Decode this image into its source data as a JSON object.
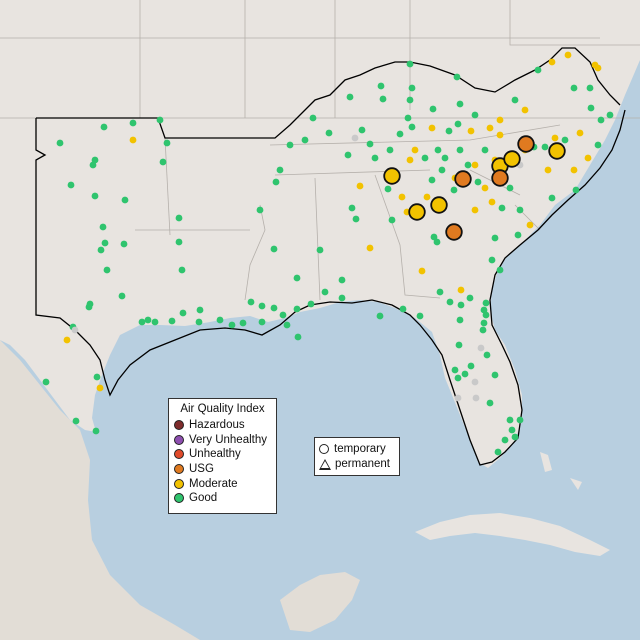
{
  "aqi_legend": {
    "title": "Air Quality Index",
    "categories": [
      {
        "label": "Hazardous",
        "color": "#7e2c2c"
      },
      {
        "label": "Very Unhealthy",
        "color": "#8e4fb0"
      },
      {
        "label": "Unhealthy",
        "color": "#e04a2a"
      },
      {
        "label": "USG",
        "color": "#e07a20"
      },
      {
        "label": "Moderate",
        "color": "#f2c200"
      },
      {
        "label": "Good",
        "color": "#2fc46e"
      }
    ]
  },
  "shape_legend": {
    "temporary": "temporary",
    "permanent": "permanent"
  },
  "colors": {
    "water": "#b8cfe0",
    "land": "#e8e4e0",
    "good": "#2fc46e",
    "moderate": "#f2c200",
    "usg": "#e07a20",
    "no_data": "#c9c9c9",
    "boundary": "#000000"
  },
  "monitor_summary": {
    "large_usg_count": 5,
    "large_moderate_count": 6
  }
}
